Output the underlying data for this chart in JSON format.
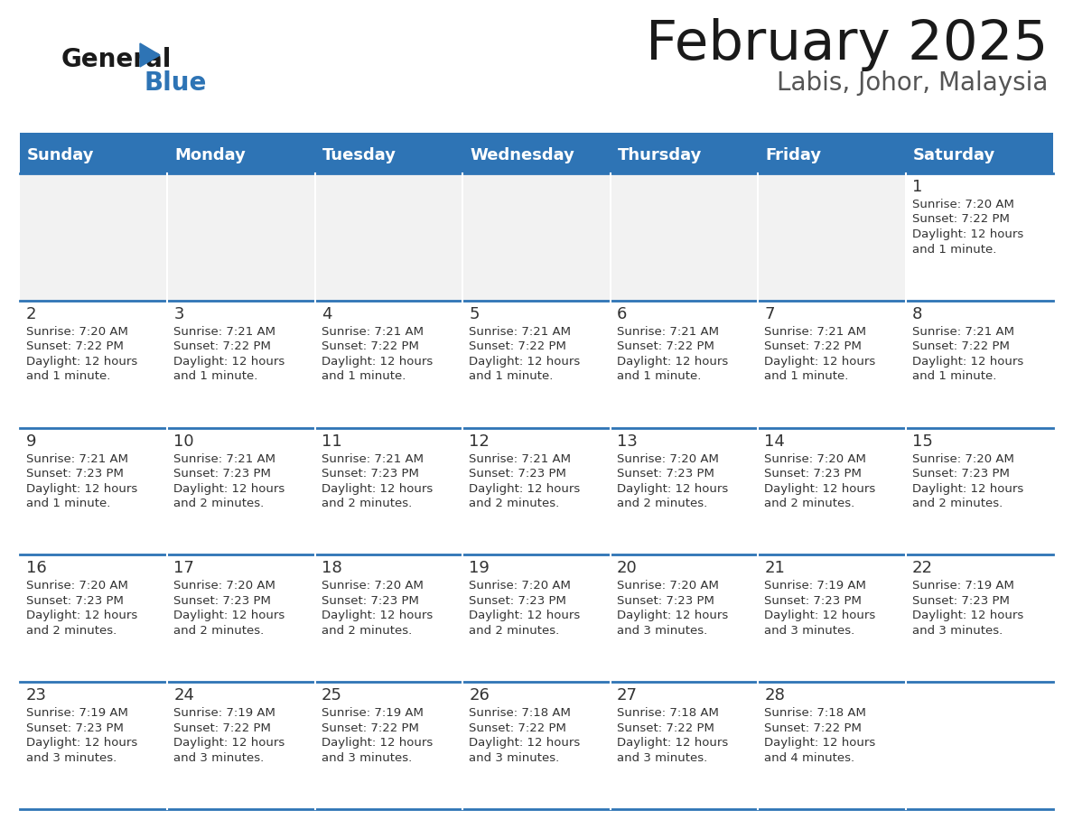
{
  "title": "February 2025",
  "subtitle": "Labis, Johor, Malaysia",
  "header_bg": "#2E74B5",
  "header_text_color": "#FFFFFF",
  "cell_bg": "#FFFFFF",
  "row0_bg": "#F2F2F2",
  "border_color": "#2E74B5",
  "text_color": "#333333",
  "day_names": [
    "Sunday",
    "Monday",
    "Tuesday",
    "Wednesday",
    "Thursday",
    "Friday",
    "Saturday"
  ],
  "title_color": "#1a1a1a",
  "subtitle_color": "#555555",
  "days": [
    {
      "day": 1,
      "col": 6,
      "row": 0,
      "sunrise": "7:20 AM",
      "sunset": "7:22 PM",
      "daylight": "12 hours\nand 1 minute."
    },
    {
      "day": 2,
      "col": 0,
      "row": 1,
      "sunrise": "7:20 AM",
      "sunset": "7:22 PM",
      "daylight": "12 hours\nand 1 minute."
    },
    {
      "day": 3,
      "col": 1,
      "row": 1,
      "sunrise": "7:21 AM",
      "sunset": "7:22 PM",
      "daylight": "12 hours\nand 1 minute."
    },
    {
      "day": 4,
      "col": 2,
      "row": 1,
      "sunrise": "7:21 AM",
      "sunset": "7:22 PM",
      "daylight": "12 hours\nand 1 minute."
    },
    {
      "day": 5,
      "col": 3,
      "row": 1,
      "sunrise": "7:21 AM",
      "sunset": "7:22 PM",
      "daylight": "12 hours\nand 1 minute."
    },
    {
      "day": 6,
      "col": 4,
      "row": 1,
      "sunrise": "7:21 AM",
      "sunset": "7:22 PM",
      "daylight": "12 hours\nand 1 minute."
    },
    {
      "day": 7,
      "col": 5,
      "row": 1,
      "sunrise": "7:21 AM",
      "sunset": "7:22 PM",
      "daylight": "12 hours\nand 1 minute."
    },
    {
      "day": 8,
      "col": 6,
      "row": 1,
      "sunrise": "7:21 AM",
      "sunset": "7:22 PM",
      "daylight": "12 hours\nand 1 minute."
    },
    {
      "day": 9,
      "col": 0,
      "row": 2,
      "sunrise": "7:21 AM",
      "sunset": "7:23 PM",
      "daylight": "12 hours\nand 1 minute."
    },
    {
      "day": 10,
      "col": 1,
      "row": 2,
      "sunrise": "7:21 AM",
      "sunset": "7:23 PM",
      "daylight": "12 hours\nand 2 minutes."
    },
    {
      "day": 11,
      "col": 2,
      "row": 2,
      "sunrise": "7:21 AM",
      "sunset": "7:23 PM",
      "daylight": "12 hours\nand 2 minutes."
    },
    {
      "day": 12,
      "col": 3,
      "row": 2,
      "sunrise": "7:21 AM",
      "sunset": "7:23 PM",
      "daylight": "12 hours\nand 2 minutes."
    },
    {
      "day": 13,
      "col": 4,
      "row": 2,
      "sunrise": "7:20 AM",
      "sunset": "7:23 PM",
      "daylight": "12 hours\nand 2 minutes."
    },
    {
      "day": 14,
      "col": 5,
      "row": 2,
      "sunrise": "7:20 AM",
      "sunset": "7:23 PM",
      "daylight": "12 hours\nand 2 minutes."
    },
    {
      "day": 15,
      "col": 6,
      "row": 2,
      "sunrise": "7:20 AM",
      "sunset": "7:23 PM",
      "daylight": "12 hours\nand 2 minutes."
    },
    {
      "day": 16,
      "col": 0,
      "row": 3,
      "sunrise": "7:20 AM",
      "sunset": "7:23 PM",
      "daylight": "12 hours\nand 2 minutes."
    },
    {
      "day": 17,
      "col": 1,
      "row": 3,
      "sunrise": "7:20 AM",
      "sunset": "7:23 PM",
      "daylight": "12 hours\nand 2 minutes."
    },
    {
      "day": 18,
      "col": 2,
      "row": 3,
      "sunrise": "7:20 AM",
      "sunset": "7:23 PM",
      "daylight": "12 hours\nand 2 minutes."
    },
    {
      "day": 19,
      "col": 3,
      "row": 3,
      "sunrise": "7:20 AM",
      "sunset": "7:23 PM",
      "daylight": "12 hours\nand 2 minutes."
    },
    {
      "day": 20,
      "col": 4,
      "row": 3,
      "sunrise": "7:20 AM",
      "sunset": "7:23 PM",
      "daylight": "12 hours\nand 3 minutes."
    },
    {
      "day": 21,
      "col": 5,
      "row": 3,
      "sunrise": "7:19 AM",
      "sunset": "7:23 PM",
      "daylight": "12 hours\nand 3 minutes."
    },
    {
      "day": 22,
      "col": 6,
      "row": 3,
      "sunrise": "7:19 AM",
      "sunset": "7:23 PM",
      "daylight": "12 hours\nand 3 minutes."
    },
    {
      "day": 23,
      "col": 0,
      "row": 4,
      "sunrise": "7:19 AM",
      "sunset": "7:23 PM",
      "daylight": "12 hours\nand 3 minutes."
    },
    {
      "day": 24,
      "col": 1,
      "row": 4,
      "sunrise": "7:19 AM",
      "sunset": "7:22 PM",
      "daylight": "12 hours\nand 3 minutes."
    },
    {
      "day": 25,
      "col": 2,
      "row": 4,
      "sunrise": "7:19 AM",
      "sunset": "7:22 PM",
      "daylight": "12 hours\nand 3 minutes."
    },
    {
      "day": 26,
      "col": 3,
      "row": 4,
      "sunrise": "7:18 AM",
      "sunset": "7:22 PM",
      "daylight": "12 hours\nand 3 minutes."
    },
    {
      "day": 27,
      "col": 4,
      "row": 4,
      "sunrise": "7:18 AM",
      "sunset": "7:22 PM",
      "daylight": "12 hours\nand 3 minutes."
    },
    {
      "day": 28,
      "col": 5,
      "row": 4,
      "sunrise": "7:18 AM",
      "sunset": "7:22 PM",
      "daylight": "12 hours\nand 4 minutes."
    }
  ]
}
